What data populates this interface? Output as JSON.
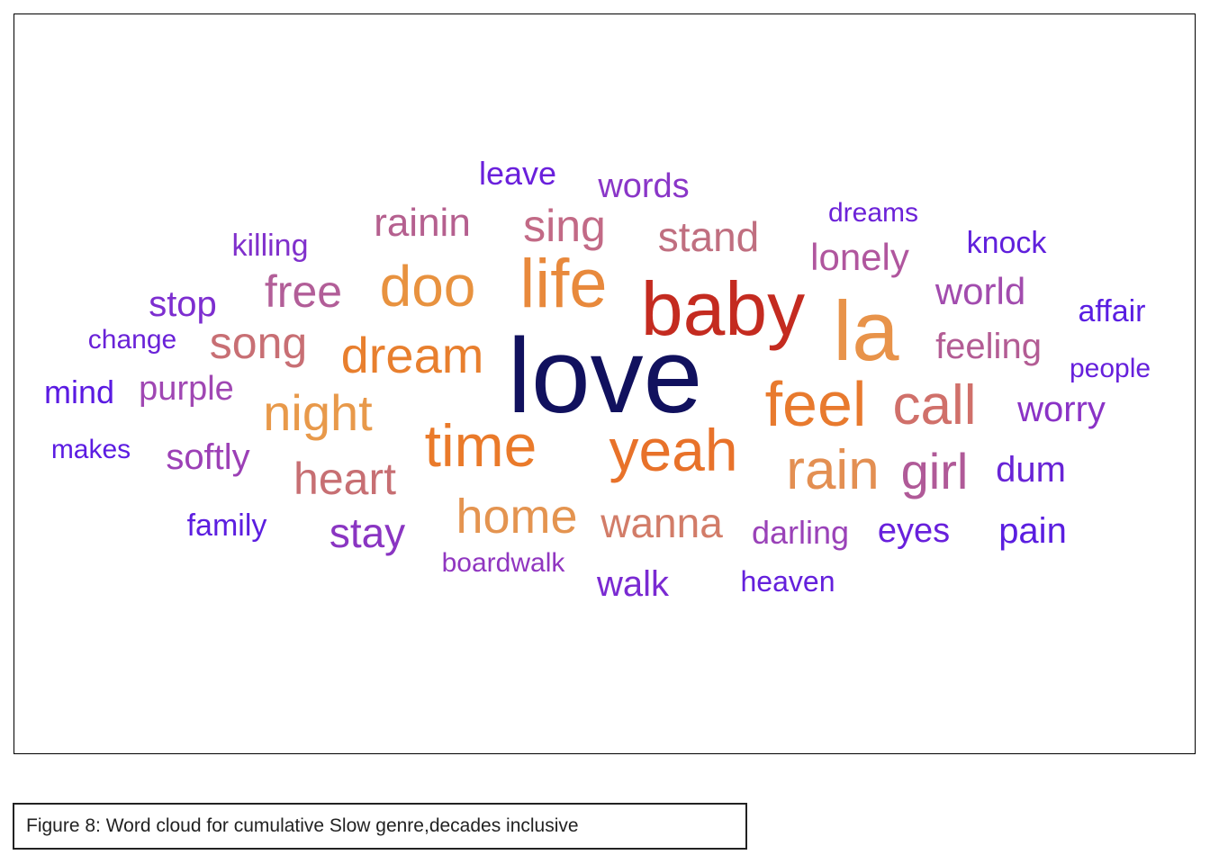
{
  "caption": "Figure 8: Word cloud for cumulative Slow genre,decades inclusive",
  "chart_data": {
    "type": "wordcloud",
    "words": [
      {
        "text": "love",
        "color": "#11115e"
      },
      {
        "text": "baby",
        "color": "#c42b20"
      },
      {
        "text": "la",
        "color": "#e8934a"
      },
      {
        "text": "life",
        "color": "#e8893c"
      },
      {
        "text": "doo",
        "color": "#e8923f"
      },
      {
        "text": "time",
        "color": "#ea7a2a"
      },
      {
        "text": "yeah",
        "color": "#e8722a"
      },
      {
        "text": "feel",
        "color": "#e87a2e"
      },
      {
        "text": "rain",
        "color": "#e38f52"
      },
      {
        "text": "call",
        "color": "#d0706a"
      },
      {
        "text": "girl",
        "color": "#b05a98"
      },
      {
        "text": "dream",
        "color": "#e87f2e"
      },
      {
        "text": "night",
        "color": "#e8994a"
      },
      {
        "text": "home",
        "color": "#e49450"
      },
      {
        "text": "song",
        "color": "#c86f74"
      },
      {
        "text": "free",
        "color": "#b25e98"
      },
      {
        "text": "sing",
        "color": "#c26a86"
      },
      {
        "text": "heart",
        "color": "#c76f73"
      },
      {
        "text": "wanna",
        "color": "#d27c68"
      },
      {
        "text": "stand",
        "color": "#c06f80"
      },
      {
        "text": "rainin",
        "color": "#b5608f"
      },
      {
        "text": "lonely",
        "color": "#b0569e"
      },
      {
        "text": "world",
        "color": "#a24cae"
      },
      {
        "text": "feeling",
        "color": "#b35c94"
      },
      {
        "text": "purple",
        "color": "#a047b3"
      },
      {
        "text": "softly",
        "color": "#9c40b6"
      },
      {
        "text": "stay",
        "color": "#8a35c2"
      },
      {
        "text": "stop",
        "color": "#7d2ed0"
      },
      {
        "text": "worry",
        "color": "#8a33c6"
      },
      {
        "text": "dum",
        "color": "#6824d6"
      },
      {
        "text": "eyes",
        "color": "#6820dc"
      },
      {
        "text": "pain",
        "color": "#5a1ee0"
      },
      {
        "text": "darling",
        "color": "#9a42b8"
      },
      {
        "text": "walk",
        "color": "#7a2ad2"
      },
      {
        "text": "words",
        "color": "#8a36c8"
      },
      {
        "text": "leave",
        "color": "#6a20dc"
      },
      {
        "text": "killing",
        "color": "#8030cc"
      },
      {
        "text": "knock",
        "color": "#6020dc"
      },
      {
        "text": "dreams",
        "color": "#6c22d8"
      },
      {
        "text": "affair",
        "color": "#5a1ee2"
      },
      {
        "text": "people",
        "color": "#6620dc"
      },
      {
        "text": "mind",
        "color": "#5a1ae2"
      },
      {
        "text": "change",
        "color": "#6a22d8"
      },
      {
        "text": "makes",
        "color": "#5c1ce2"
      },
      {
        "text": "family",
        "color": "#5c1ee0"
      },
      {
        "text": "boardwalk",
        "color": "#9036c0"
      },
      {
        "text": "heaven",
        "color": "#6420dc"
      }
    ]
  }
}
